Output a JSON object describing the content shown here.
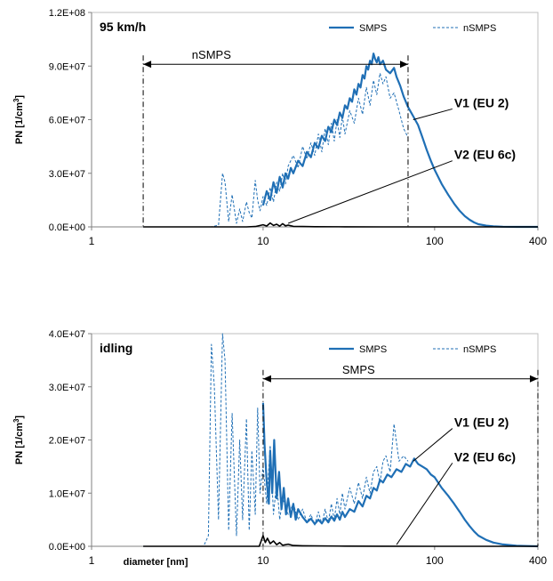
{
  "chart_data": [
    {
      "type": "line",
      "title": "95 km/h",
      "ylabel": "PN [1/cm³]",
      "xlabel": "",
      "xscale": "log",
      "xlim": [
        1,
        400
      ],
      "ylim": [
        0,
        120000000
      ],
      "xticks": [
        "1",
        "10",
        "100",
        "400"
      ],
      "xtick_values": [
        1,
        10,
        100,
        400
      ],
      "yticks": [
        "0.0E+00",
        "3.0E+07",
        "6.0E+07",
        "9.0E+07",
        "1.2E+08"
      ],
      "ytick_values": [
        0,
        30000000,
        60000000,
        90000000,
        120000000
      ],
      "grid": false,
      "legend": {
        "placement": "top-right",
        "entries": [
          "SMPS",
          "nSMPS"
        ]
      },
      "range_marker": {
        "label": "nSMPS",
        "x_start": 2,
        "x_end": 70,
        "y": 91000000
      },
      "annotations": [
        {
          "label": "V1 (EU 2)",
          "x": 75,
          "y": 60000000,
          "text_x": 130,
          "text_y": 67000000
        },
        {
          "label": "V2 (EU 6c)",
          "x": 14,
          "y": 2000000,
          "text_x": 130,
          "text_y": 38000000
        }
      ],
      "series": [
        {
          "name": "SMPS",
          "color": "#1f6fb5",
          "style": "solid",
          "x": [
            10,
            10.5,
            11,
            11.5,
            12,
            12.5,
            13,
            13.5,
            14,
            14.5,
            15,
            16,
            17,
            18,
            19,
            20,
            21,
            22,
            23,
            24,
            25,
            26,
            27,
            28,
            29,
            30,
            31,
            32,
            33,
            34,
            35,
            36,
            37,
            38,
            39,
            40,
            41,
            42,
            43,
            44,
            45,
            46,
            47,
            48,
            50,
            52,
            55,
            58,
            60,
            63,
            66,
            70,
            75,
            80,
            85,
            90,
            95,
            100,
            110,
            120,
            130,
            140,
            150,
            160,
            170,
            180,
            200,
            220,
            250,
            300,
            350,
            400
          ],
          "y": [
            12000000,
            20000000,
            15000000,
            25000000,
            19000000,
            28000000,
            22000000,
            30000000,
            27000000,
            33000000,
            30000000,
            37000000,
            34000000,
            42000000,
            39000000,
            47000000,
            44000000,
            51000000,
            48000000,
            56000000,
            53000000,
            60000000,
            57000000,
            64000000,
            61000000,
            68000000,
            66000000,
            72000000,
            70000000,
            77000000,
            74000000,
            80000000,
            78000000,
            85000000,
            83000000,
            90000000,
            88000000,
            93000000,
            91000000,
            97000000,
            94000000,
            92000000,
            95000000,
            91000000,
            93000000,
            88000000,
            86000000,
            89000000,
            84000000,
            79000000,
            73000000,
            67000000,
            62000000,
            57000000,
            50000000,
            43000000,
            37000000,
            32000000,
            24000000,
            18000000,
            13000000,
            9000000,
            6000000,
            4000000,
            2500000,
            1500000,
            700000,
            300000,
            100000,
            0,
            0,
            0
          ]
        },
        {
          "name": "nSMPS",
          "color": "#1f6fb5",
          "style": "dashed",
          "x": [
            2,
            3,
            4,
            5,
            5.5,
            5.8,
            6,
            6.3,
            6.6,
            7,
            7.3,
            7.6,
            8,
            8.3,
            8.6,
            9,
            9.3,
            9.6,
            10,
            10.5,
            11,
            11.5,
            12,
            12.5,
            13,
            13.5,
            14,
            15,
            16,
            17,
            18,
            19,
            20,
            21,
            22,
            23,
            24,
            25,
            26,
            27,
            28,
            29,
            30,
            32,
            34,
            36,
            38,
            40,
            42,
            44,
            46,
            48,
            50,
            52,
            55,
            58,
            62,
            66,
            70
          ],
          "y": [
            0,
            0,
            0,
            0,
            1000000,
            30000000,
            25000000,
            3000000,
            18000000,
            2000000,
            10000000,
            3000000,
            14000000,
            8000000,
            5000000,
            26000000,
            15000000,
            9000000,
            17000000,
            12000000,
            22000000,
            14000000,
            25000000,
            20000000,
            30000000,
            24000000,
            34000000,
            40000000,
            33000000,
            45000000,
            38000000,
            47000000,
            40000000,
            52000000,
            42000000,
            55000000,
            46000000,
            58000000,
            48000000,
            60000000,
            50000000,
            62000000,
            52000000,
            65000000,
            58000000,
            72000000,
            63000000,
            78000000,
            68000000,
            82000000,
            74000000,
            86000000,
            80000000,
            84000000,
            72000000,
            75000000,
            65000000,
            55000000,
            50000000
          ]
        },
        {
          "name": "",
          "color": "#000000",
          "style": "solid",
          "x": [
            2,
            5,
            8,
            9,
            10,
            10.5,
            11,
            11.5,
            12,
            12.5,
            13,
            13.5,
            14,
            15,
            17,
            20,
            30,
            50,
            100,
            200,
            400
          ],
          "y": [
            0,
            0,
            0,
            200000,
            1200000,
            500000,
            2200000,
            800000,
            1500000,
            400000,
            1800000,
            600000,
            1000000,
            300000,
            200000,
            100000,
            50000,
            20000,
            0,
            0,
            0
          ]
        }
      ]
    },
    {
      "type": "line",
      "title": "idling",
      "ylabel": "PN [1/cm³]",
      "xlabel": "diameter [nm]",
      "xscale": "log",
      "xlim": [
        1,
        400
      ],
      "ylim": [
        0,
        40000000
      ],
      "xticks": [
        "1",
        "10",
        "100",
        "400"
      ],
      "xtick_values": [
        1,
        10,
        100,
        400
      ],
      "yticks": [
        "0.0E+00",
        "1.0E+07",
        "2.0E+07",
        "3.0E+07",
        "4.0E+07"
      ],
      "ytick_values": [
        0,
        10000000,
        20000000,
        30000000,
        40000000
      ],
      "grid": false,
      "legend": {
        "placement": "top-right",
        "entries": [
          "SMPS",
          "nSMPS"
        ]
      },
      "range_marker": {
        "label": "SMPS",
        "x_start": 10,
        "x_end": 400,
        "y": 31500000
      },
      "annotations": [
        {
          "label": "V1 (EU 2)",
          "x": 75,
          "y": 16000000,
          "text_x": 130,
          "text_y": 22500000
        },
        {
          "label": "V2 (EU 6c)",
          "x": 60,
          "y": 300000,
          "text_x": 130,
          "text_y": 16000000
        }
      ],
      "series": [
        {
          "name": "SMPS",
          "color": "#1f6fb5",
          "style": "solid",
          "x": [
            10,
            10.2,
            10.5,
            10.8,
            11,
            11.3,
            11.6,
            12,
            12.4,
            12.8,
            13.2,
            13.6,
            14,
            14.5,
            15,
            15.5,
            16,
            17,
            18,
            19,
            20,
            21,
            22,
            23,
            24,
            25,
            26,
            27,
            28,
            29,
            30,
            32,
            34,
            36,
            38,
            40,
            42,
            44,
            46,
            48,
            50,
            53,
            56,
            60,
            64,
            68,
            72,
            76,
            80,
            85,
            90,
            95,
            100,
            110,
            120,
            130,
            140,
            150,
            160,
            170,
            180,
            200,
            220,
            250,
            300,
            350,
            400
          ],
          "y": [
            27000000,
            19000000,
            12000000,
            8000000,
            18000000,
            10000000,
            20000000,
            9000000,
            14000000,
            7000000,
            11000000,
            6000000,
            9000000,
            5500000,
            8000000,
            5000000,
            7000000,
            5500000,
            4500000,
            5200000,
            4200000,
            5000000,
            4300000,
            5300000,
            4500000,
            5600000,
            4800000,
            6000000,
            5000000,
            6500000,
            5500000,
            7000000,
            6500000,
            8500000,
            7500000,
            9500000,
            9000000,
            11000000,
            10500000,
            12500000,
            12000000,
            13500000,
            13000000,
            14500000,
            14000000,
            15500000,
            15000000,
            16500000,
            15500000,
            15000000,
            14500000,
            13500000,
            13000000,
            11000000,
            9500000,
            8000000,
            6500000,
            5000000,
            3800000,
            2800000,
            2000000,
            1200000,
            700000,
            350000,
            100000,
            50000,
            0
          ]
        },
        {
          "name": "nSMPS",
          "color": "#1f6fb5",
          "style": "dashed",
          "x": [
            2,
            3,
            4,
            4.5,
            4.8,
            5,
            5.2,
            5.5,
            5.8,
            6,
            6.3,
            6.6,
            7,
            7.3,
            7.6,
            8,
            8.3,
            8.6,
            9,
            9.3,
            9.6,
            10,
            10.5,
            11,
            11.5,
            12,
            12.5,
            13,
            14,
            15,
            16,
            17,
            18,
            19,
            20,
            21,
            22,
            23,
            24,
            25,
            26,
            27,
            28,
            29,
            30,
            32,
            34,
            36,
            38,
            40,
            42,
            44,
            46,
            48,
            50,
            52,
            55,
            58,
            62,
            66,
            70
          ],
          "y": [
            0,
            0,
            0,
            0,
            2000000,
            38000000,
            30000000,
            5000000,
            40000000,
            35000000,
            3000000,
            25000000,
            2000000,
            20000000,
            5000000,
            24000000,
            3000000,
            18000000,
            6000000,
            26000000,
            10000000,
            15000000,
            8000000,
            19000000,
            6000000,
            12000000,
            5000000,
            9000000,
            6000000,
            8000000,
            5000000,
            7000000,
            4500000,
            6000000,
            4000000,
            6500000,
            4200000,
            7000000,
            4500000,
            8000000,
            5000000,
            9000000,
            6000000,
            10000000,
            7000000,
            11000000,
            8000000,
            12000000,
            9000000,
            13000000,
            10000000,
            14000000,
            15000000,
            12000000,
            16000000,
            17000000,
            14000000,
            23000000,
            16000000,
            17000000,
            16000000
          ]
        },
        {
          "name": "",
          "color": "#000000",
          "style": "solid",
          "x": [
            2,
            5,
            8,
            9.5,
            10,
            10.3,
            10.6,
            11,
            11.5,
            12,
            12.5,
            13,
            14,
            15,
            17,
            20,
            30,
            50,
            100,
            200,
            400
          ],
          "y": [
            0,
            0,
            0,
            0,
            2000000,
            700000,
            1500000,
            500000,
            1000000,
            300000,
            700000,
            200000,
            400000,
            150000,
            100000,
            80000,
            40000,
            20000,
            0,
            0,
            0
          ]
        }
      ]
    }
  ]
}
